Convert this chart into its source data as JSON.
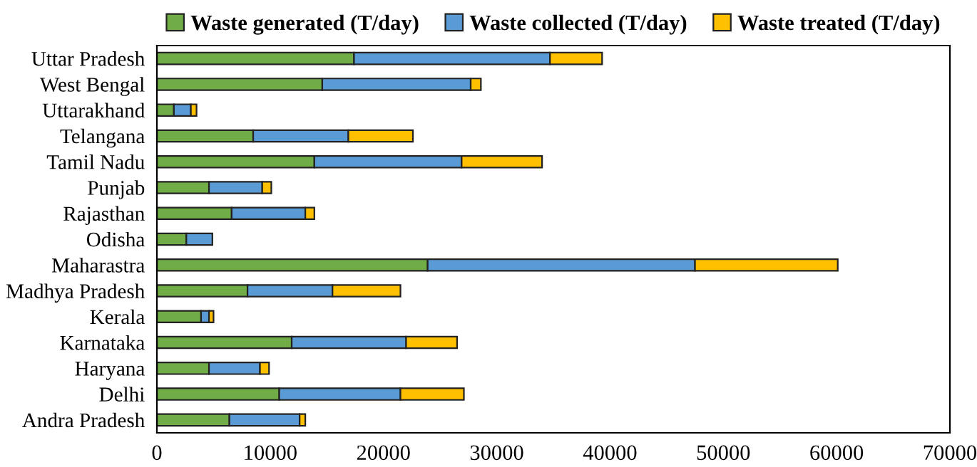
{
  "chart_data": {
    "type": "bar",
    "orientation": "horizontal",
    "stacked": true,
    "legend": "top",
    "categories": [
      "Uttar Pradesh",
      "West Bengal",
      "Uttarakhand",
      "Telangana",
      "Tamil Nadu",
      "Punjab",
      "Rajasthan",
      "Odisha",
      "Maharastra",
      "Madhya Pradesh",
      "Kerala",
      "Karnataka",
      "Haryana",
      "Delhi",
      "Andra Pradesh"
    ],
    "series": [
      {
        "name": "Waste generated (T/day)",
        "color": "#70ad47",
        "values": [
          17400,
          14600,
          1500,
          8500,
          13900,
          4600,
          6600,
          2600,
          23900,
          8000,
          3900,
          11900,
          4600,
          10800,
          6400
        ]
      },
      {
        "name": "Waste collected (T/day)",
        "color": "#5b9bd5",
        "values": [
          17300,
          13100,
          1500,
          8400,
          13000,
          4700,
          6500,
          2300,
          23600,
          7500,
          700,
          10100,
          4500,
          10700,
          6200
        ]
      },
      {
        "name": "Waste treated (T/day)",
        "color": "#ffc000",
        "values": [
          4600,
          900,
          500,
          5700,
          7100,
          800,
          800,
          null,
          12600,
          6000,
          400,
          4500,
          800,
          5600,
          500
        ]
      }
    ],
    "xlim": [
      0,
      70000
    ],
    "xticks": [
      0,
      10000,
      20000,
      30000,
      40000,
      50000,
      60000,
      70000
    ],
    "grid": false
  }
}
